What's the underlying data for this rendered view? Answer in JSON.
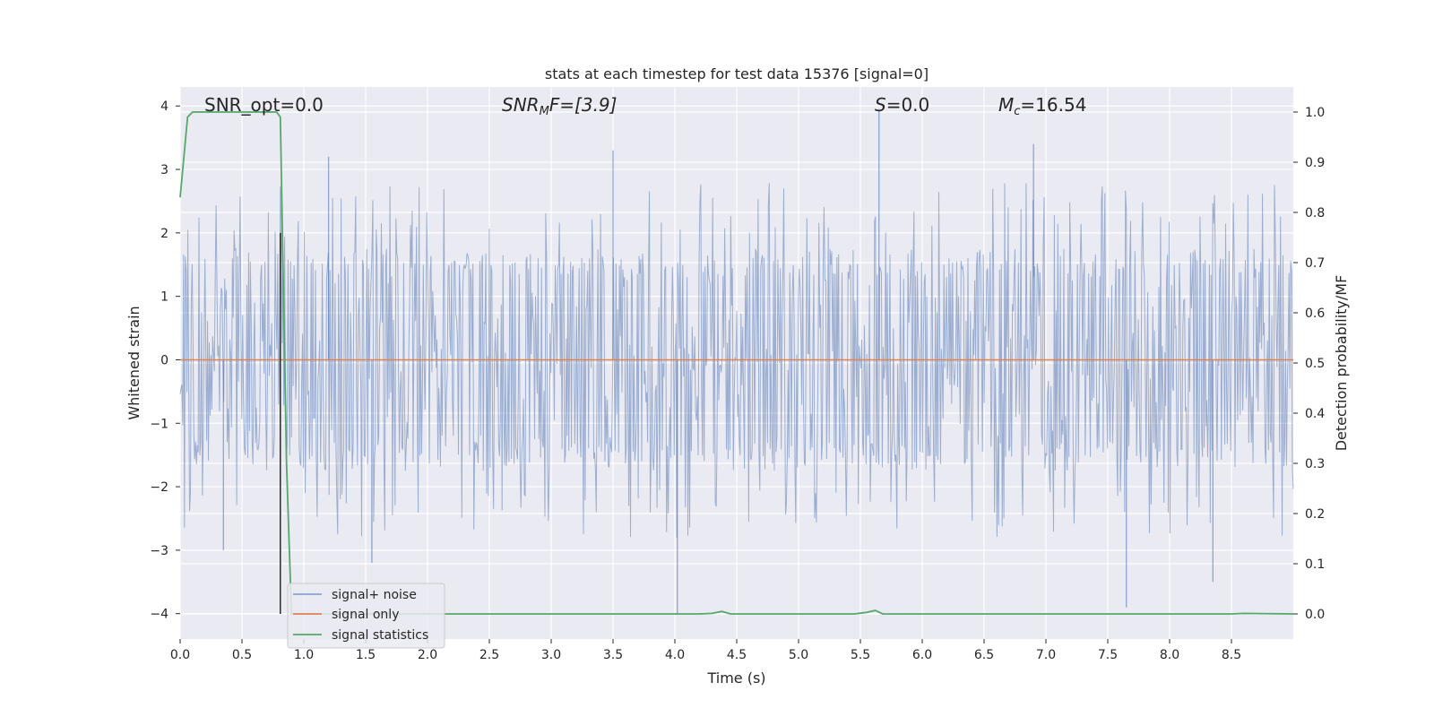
{
  "chart_data": {
    "type": "line",
    "title": "stats at each timestep for test data 15376 [signal=0]",
    "xlabel": "Time (s)",
    "ylabel": "Whitened strain",
    "ylabel_right": "Detection probability/MF",
    "xlim": [
      0.0,
      9.0
    ],
    "ylim_left": [
      -4.4,
      4.3
    ],
    "ylim_right": [
      -0.05,
      1.05
    ],
    "x_ticks": [
      0.0,
      0.5,
      1.0,
      1.5,
      2.0,
      2.5,
      3.0,
      3.5,
      4.0,
      4.5,
      5.0,
      5.5,
      6.0,
      6.5,
      7.0,
      7.5,
      8.0,
      8.5
    ],
    "x_tick_labels": [
      "0.0",
      "0.5",
      "1.0",
      "1.5",
      "2.0",
      "2.5",
      "3.0",
      "3.5",
      "4.0",
      "4.5",
      "5.0",
      "5.5",
      "6.0",
      "6.5",
      "7.0",
      "7.5",
      "8.0",
      "8.5"
    ],
    "y_ticks_left": [
      -4,
      -3,
      -2,
      -1,
      0,
      1,
      2,
      3,
      4
    ],
    "y_tick_labels_left": [
      "−4",
      "−3",
      "−2",
      "−1",
      "0",
      "1",
      "2",
      "3",
      "4"
    ],
    "y_ticks_right": [
      0.0,
      0.1,
      0.2,
      0.3,
      0.4,
      0.5,
      0.6,
      0.7,
      0.8,
      0.9,
      1.0
    ],
    "y_tick_labels_right": [
      "0.0",
      "0.1",
      "0.2",
      "0.3",
      "0.4",
      "0.5",
      "0.6",
      "0.7",
      "0.8",
      "0.9",
      "1.0"
    ],
    "grid": true,
    "legend_position": "lower-left",
    "annotations": {
      "snr_opt": "SNR_opt=0.0",
      "snr_mf_main": "SNR",
      "snr_mf_sub": "M",
      "snr_mf_rest": "F=[3.9]",
      "s_main": "S",
      "s_rest": "=0.0",
      "mc_main": "M",
      "mc_sub": "c",
      "mc_rest": "=16.54"
    },
    "marker_time": 0.81,
    "series": [
      {
        "name": "signal+ noise",
        "axis": "left",
        "color": "#4c72b0",
        "style": "dense noise, approximately ±1.6 core with peaks to about ±3",
        "x_range": [
          0.0,
          9.0
        ],
        "extremes": [
          {
            "x": 0.35,
            "y": -3.0
          },
          {
            "x": 1.2,
            "y": 3.2
          },
          {
            "x": 1.55,
            "y": -3.2
          },
          {
            "x": 3.5,
            "y": 3.3
          },
          {
            "x": 4.02,
            "y": -4.0
          },
          {
            "x": 5.65,
            "y": 3.95
          },
          {
            "x": 6.9,
            "y": 3.4
          },
          {
            "x": 7.65,
            "y": -3.9
          },
          {
            "x": 8.35,
            "y": -3.5
          }
        ]
      },
      {
        "name": "signal only",
        "axis": "left",
        "color": "#dd8452",
        "x": [
          0.0,
          9.0
        ],
        "y": [
          0.0,
          0.0
        ]
      },
      {
        "name": "signal statistics",
        "axis": "right",
        "color": "#55a868",
        "x": [
          0.0,
          0.06,
          0.1,
          0.2,
          0.5,
          0.78,
          0.81,
          0.86,
          0.9,
          1.5,
          4.2,
          4.3,
          4.38,
          4.45,
          5.45,
          5.55,
          5.62,
          5.68,
          8.5,
          8.6,
          9.0
        ],
        "y": [
          0.83,
          0.99,
          1.0,
          1.0,
          1.0,
          1.0,
          0.99,
          0.3,
          0.0,
          0.0,
          0.0,
          0.001,
          0.005,
          0.0,
          0.0,
          0.003,
          0.007,
          0.0,
          0.0,
          0.001,
          0.0
        ]
      }
    ]
  }
}
